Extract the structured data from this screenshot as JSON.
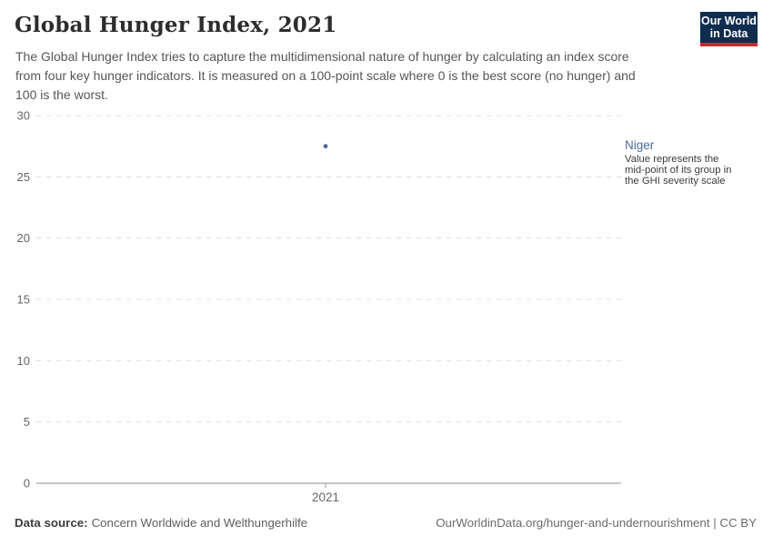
{
  "header": {
    "title": "Global Hunger Index, 2021",
    "subtitle": "The Global Hunger Index tries to capture the multidimensional nature of hunger by calculating an index score\nfrom four key hunger indicators. It is measured on a 100-point scale where 0 is the best score (no hunger) and\n100 is the worst.",
    "logo": {
      "line1": "Our World",
      "line2": "in Data"
    }
  },
  "chart_data": {
    "type": "scatter",
    "title": "Global Hunger Index, 2021",
    "x": [
      "2021"
    ],
    "series": [
      {
        "name": "Niger",
        "values": [
          27.5
        ],
        "color": "#4c6a9c"
      }
    ],
    "ylim": [
      0,
      30
    ],
    "yticks": [
      0,
      5,
      10,
      15,
      20,
      25,
      30
    ],
    "xlabel": "",
    "ylabel": "",
    "grid": "horizontal-dashed",
    "legend": "none",
    "annotation": {
      "entity": "Niger",
      "note": "Value represents the\nmid-point of its group in\nthe GHI severity scale"
    }
  },
  "footer": {
    "source_label": "Data source:",
    "source_value": "Concern Worldwide and Welthungerhilfe",
    "credit": "OurWorldinData.org/hunger-and-undernourishment | CC BY"
  },
  "colors": {
    "logo_navy": "#102d50",
    "logo_red": "#d12733",
    "entity_blue": "#4c6a9c",
    "gridline": "#dcdcdc",
    "axis_line": "#8f8f8f",
    "tick_mark": "#999999",
    "axis_text": "#666666",
    "title_text": "#2d2d2d",
    "subtitle_text": "#565656"
  }
}
